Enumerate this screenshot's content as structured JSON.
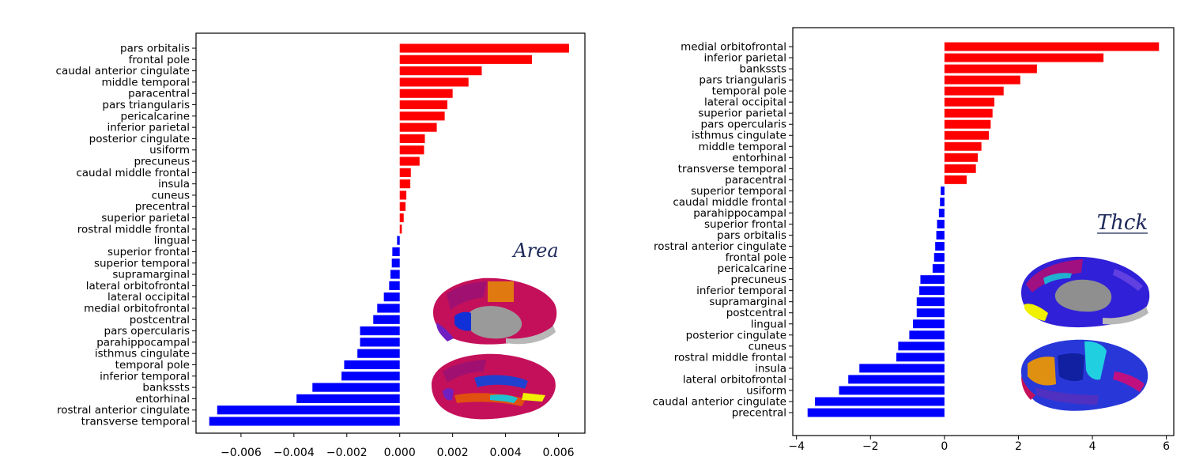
{
  "chart_data": [
    {
      "type": "bar",
      "orientation": "horizontal",
      "inset_label": "Area",
      "categories": [
        "pars orbitalis",
        "frontal pole",
        "caudal anterior cingulate",
        "middle temporal",
        "paracentral",
        "pars triangularis",
        "pericalcarine",
        "inferior parietal",
        "posterior cingulate",
        "usiform",
        "precuneus",
        "caudal middle frontal",
        "insula",
        "cuneus",
        "precentral",
        "superior parietal",
        "rostral middle frontal",
        "lingual",
        "superior frontal",
        "superior temporal",
        "supramarginal",
        "lateral orbitofrontal",
        "lateral occipital",
        "medial orbitofrontal",
        "postcentral",
        "pars opercularis",
        "parahippocampal",
        "isthmus cingulate",
        "temporal pole",
        "inferior temporal",
        "bankssts",
        "entorhinal",
        "rostral anterior cingulate",
        "transverse temporal"
      ],
      "values": [
        0.0064,
        0.005,
        0.0031,
        0.0026,
        0.002,
        0.0018,
        0.0017,
        0.0014,
        0.00095,
        0.00092,
        0.00075,
        0.00042,
        0.0004,
        0.00025,
        0.00022,
        0.00015,
        8e-05,
        -0.0001,
        -0.00028,
        -0.0003,
        -0.00035,
        -0.0004,
        -0.0006,
        -0.00085,
        -0.001,
        -0.0015,
        -0.0015,
        -0.0016,
        -0.0021,
        -0.0022,
        -0.0033,
        -0.0039,
        -0.0069,
        -0.0072
      ],
      "xticks": [
        -0.006,
        -0.004,
        -0.002,
        0.0,
        0.002,
        0.004,
        0.006
      ],
      "xtick_labels": [
        "−0.006",
        "−0.004",
        "−0.002",
        "0.000",
        "0.002",
        "0.004",
        "0.006"
      ],
      "xlim": [
        -0.0077,
        0.007
      ],
      "positive_color": "#ff0000",
      "negative_color": "#0000ff"
    },
    {
      "type": "bar",
      "orientation": "horizontal",
      "inset_label": "Thck",
      "categories": [
        "medial orbitofrontal",
        "inferior parietal",
        "bankssts",
        "pars triangularis",
        "temporal pole",
        "lateral occipital",
        "superior parietal",
        "pars opercularis",
        "isthmus cingulate",
        "middle temporal",
        "entorhinal",
        "transverse temporal",
        "paracentral",
        "superior temporal",
        "caudal middle frontal",
        "parahippocampal",
        "superior frontal",
        "pars orbitalis",
        "rostral anterior cingulate",
        "frontal pole",
        "pericalcarine",
        "precuneus",
        "inferior temporal",
        "supramarginal",
        "postcentral",
        "lingual",
        "posterior cingulate",
        "cuneus",
        "rostral middle frontal",
        "insula",
        "lateral orbitofrontal",
        "usiform",
        "caudal anterior cingulate",
        "precentral"
      ],
      "values": [
        5.8,
        4.3,
        2.5,
        2.05,
        1.6,
        1.35,
        1.3,
        1.25,
        1.2,
        1.0,
        0.9,
        0.85,
        0.6,
        -0.1,
        -0.12,
        -0.15,
        -0.2,
        -0.22,
        -0.25,
        -0.28,
        -0.32,
        -0.65,
        -0.68,
        -0.75,
        -0.75,
        -0.85,
        -0.95,
        -1.25,
        -1.3,
        -2.3,
        -2.6,
        -2.85,
        -3.5,
        -3.7
      ],
      "xticks": [
        -4,
        -2,
        0,
        2,
        4,
        6
      ],
      "xtick_labels": [
        "−4",
        "−2",
        "0",
        "2",
        "4",
        "6"
      ],
      "xlim": [
        -4.1,
        6.2
      ],
      "positive_color": "#ff0000",
      "negative_color": "#0000ff"
    }
  ]
}
